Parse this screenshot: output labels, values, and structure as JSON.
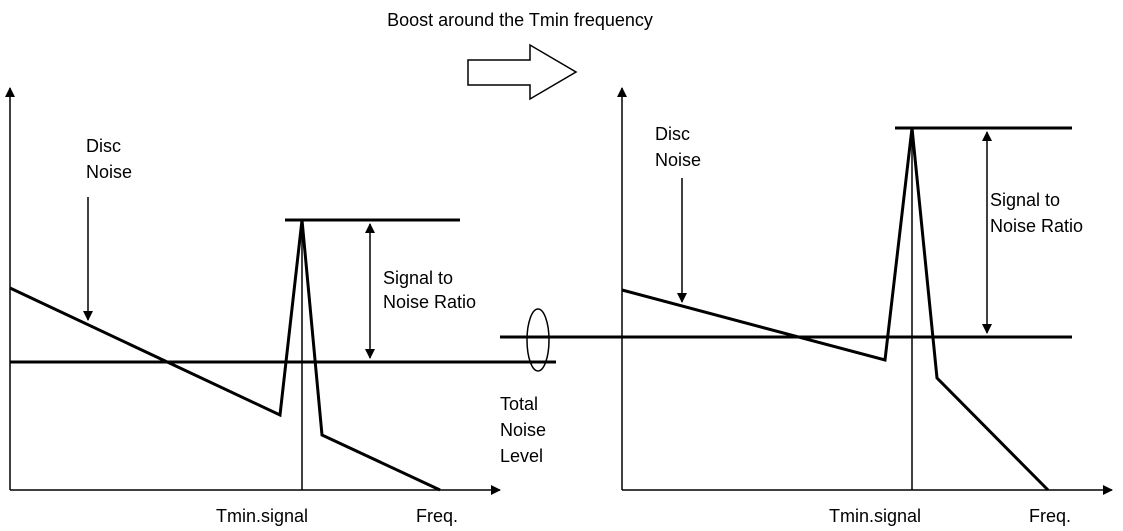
{
  "title": "Boost around the Tmin frequency",
  "left_panel": {
    "disc_noise_label": [
      "Disc",
      "Noise"
    ],
    "snr_label": [
      "Signal to",
      "Noise Ratio"
    ],
    "x_marker": "Tmin.signal",
    "x_axis_label": "Freq."
  },
  "total_noise_label": [
    "Total",
    "Noise",
    "Level"
  ],
  "right_panel": {
    "disc_noise_label": [
      "Disc",
      "Noise"
    ],
    "snr_label": [
      "Signal to",
      "Noise Ratio"
    ],
    "x_marker": "Tmin.signal",
    "x_axis_label": "Freq."
  }
}
